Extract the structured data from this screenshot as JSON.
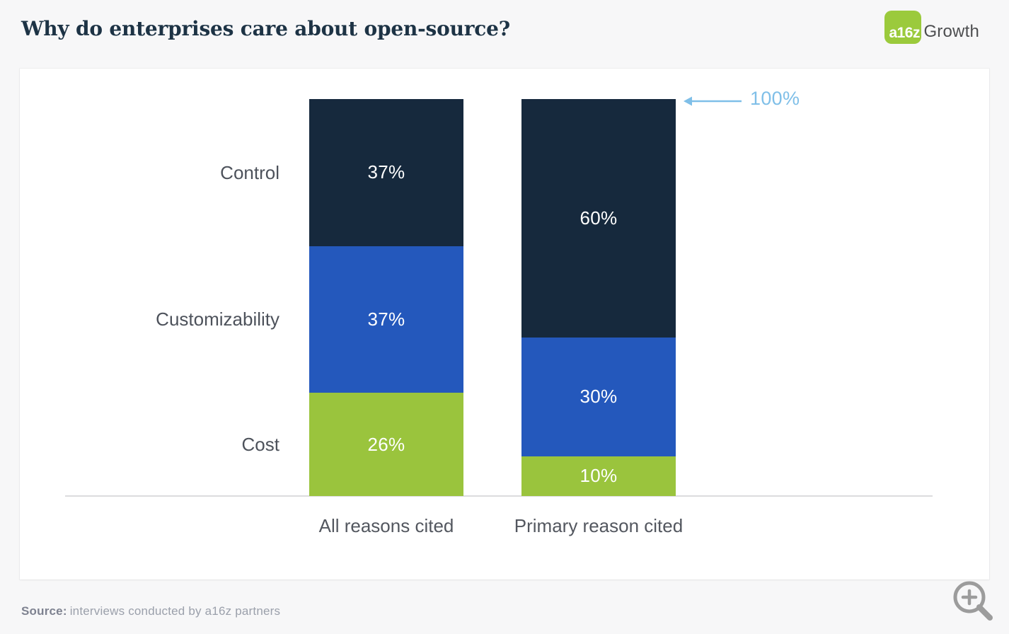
{
  "header": {
    "title": "Why do enterprises care about open-source?",
    "logo": {
      "mark": "a16z",
      "wordmark": "Growth",
      "mark_color": "#9bca3c"
    }
  },
  "chart_data": {
    "type": "bar",
    "stacked": true,
    "orientation": "vertical",
    "title": "Why do enterprises care about open-source?",
    "categories": [
      "All reasons cited",
      "Primary reason cited"
    ],
    "series": [
      {
        "name": "Control",
        "values": [
          37,
          60
        ],
        "color": "#16293d"
      },
      {
        "name": "Customizability",
        "values": [
          37,
          30
        ],
        "color": "#2458bc"
      },
      {
        "name": "Cost",
        "values": [
          26,
          10
        ],
        "color": "#9ac43d"
      }
    ],
    "segment_order": "top-to-bottom",
    "value_suffix": "%",
    "ylim": [
      0,
      100
    ],
    "grid": false,
    "legend_position": "row-labels-left-of-first-bar",
    "annotation": {
      "text": "100%",
      "target_category": "Primary reason cited",
      "position": "top-right",
      "color": "#7fbfe8"
    }
  },
  "footer": {
    "source_label": "Source:",
    "source_text": "interviews conducted by a16z partners"
  },
  "icons": {
    "zoom": "magnifier-plus"
  },
  "colors": {
    "page_background": "#f7f7f8",
    "card_background": "#ffffff",
    "title_text": "#1d3345",
    "label_text": "#4d525b",
    "axis_line": "#dcdcde",
    "annotation_blue": "#7fbfe8",
    "source_text": "#9ba0ab"
  }
}
